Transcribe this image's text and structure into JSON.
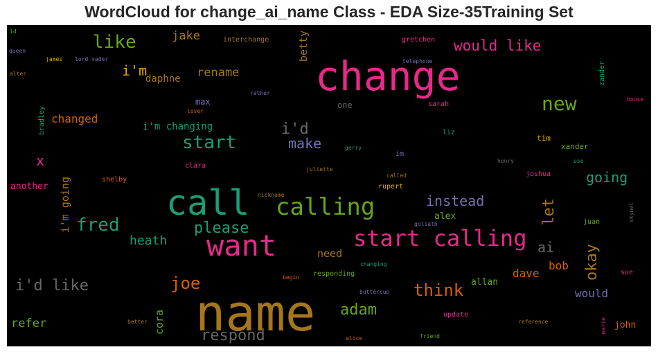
{
  "title": "WordCloud for change_ai_name Class - EDA Size-35Training Set",
  "words": [
    {
      "text": "name",
      "color": "#a6761d"
    },
    {
      "text": "change",
      "color": "#e7298a"
    },
    {
      "text": "call",
      "color": "#1b9e77"
    },
    {
      "text": "want",
      "color": "#e7298a"
    },
    {
      "text": "calling",
      "color": "#66a61e"
    },
    {
      "text": "start calling",
      "color": "#e7298a"
    },
    {
      "text": "new",
      "color": "#66a61e"
    },
    {
      "text": "fred",
      "color": "#1b9e77"
    },
    {
      "text": "start",
      "color": "#1b9e77"
    },
    {
      "text": "i'd like",
      "color": "#666666"
    },
    {
      "text": "like",
      "color": "#66a61e"
    },
    {
      "text": "joe",
      "color": "#d95f02"
    },
    {
      "text": "would like",
      "color": "#e7298a"
    },
    {
      "text": "okay",
      "color": "#a6761d"
    },
    {
      "text": "think",
      "color": "#d95f02"
    },
    {
      "text": "respond",
      "color": "#666666"
    },
    {
      "text": "adam",
      "color": "#66a61e"
    },
    {
      "text": "please",
      "color": "#1b9e77"
    },
    {
      "text": "i'd",
      "color": "#666666"
    },
    {
      "text": "make",
      "color": "#7570b3"
    },
    {
      "text": "instead",
      "color": "#7570b3"
    },
    {
      "text": "let",
      "color": "#a6761d"
    },
    {
      "text": "i'm",
      "color": "#e6ab02"
    },
    {
      "text": "going",
      "color": "#1b9e77"
    },
    {
      "text": "ai",
      "color": "#666666"
    },
    {
      "text": "heath",
      "color": "#1b9e77"
    },
    {
      "text": "rename",
      "color": "#a6761d"
    },
    {
      "text": "x",
      "color": "#e7298a"
    },
    {
      "text": "refer",
      "color": "#66a61e"
    },
    {
      "text": "would",
      "color": "#7570b3"
    },
    {
      "text": "jake",
      "color": "#a6761d"
    },
    {
      "text": "changed",
      "color": "#d95f02"
    },
    {
      "text": "i'm going",
      "color": "#a6761d"
    },
    {
      "text": "bob",
      "color": "#d95f02"
    },
    {
      "text": "dave",
      "color": "#d95f02"
    },
    {
      "text": "cora",
      "color": "#66a61e"
    },
    {
      "text": "need",
      "color": "#a6761d"
    },
    {
      "text": "betty",
      "color": "#a6761d"
    },
    {
      "text": "daphne",
      "color": "#a6761d"
    },
    {
      "text": "i'm changing",
      "color": "#1b9e77"
    },
    {
      "text": "another",
      "color": "#e7298a"
    },
    {
      "text": "allan",
      "color": "#66a61e"
    },
    {
      "text": "alex",
      "color": "#66a61e"
    },
    {
      "text": "john",
      "color": "#d95f02"
    },
    {
      "text": "max",
      "color": "#7570b3"
    },
    {
      "text": "one",
      "color": "#666666"
    },
    {
      "text": "clara",
      "color": "#e7298a"
    },
    {
      "text": "shelby",
      "color": "#d95f02"
    },
    {
      "text": "sarah",
      "color": "#e7298a"
    },
    {
      "text": "xander",
      "color": "#66a61e"
    },
    {
      "text": "joshua",
      "color": "#e7298a"
    },
    {
      "text": "rupert",
      "color": "#e6ab02"
    },
    {
      "text": "tim",
      "color": "#e6ab02"
    },
    {
      "text": "liz",
      "color": "#1b9e77"
    },
    {
      "text": "im",
      "color": "#7570b3"
    },
    {
      "text": "sue",
      "color": "#e7298a"
    },
    {
      "text": "juan",
      "color": "#66a61e"
    },
    {
      "text": "update",
      "color": "#e7298a"
    },
    {
      "text": "responding",
      "color": "#66a61e"
    },
    {
      "text": "gretchen",
      "color": "#e7298a"
    },
    {
      "text": "interchange",
      "color": "#a6761d"
    },
    {
      "text": "bradley",
      "color": "#1b9e77"
    },
    {
      "text": "zander",
      "color": "#1b9e77"
    },
    {
      "text": "house",
      "color": "#e7298a"
    },
    {
      "text": "telephone",
      "color": "#7570b3"
    },
    {
      "text": "lord vader",
      "color": "#7570b3"
    },
    {
      "text": "james",
      "color": "#e6ab02"
    },
    {
      "text": "queen",
      "color": "#7570b3"
    },
    {
      "text": "id",
      "color": "#66a61e"
    },
    {
      "text": "alter",
      "color": "#a6761d"
    },
    {
      "text": "rather",
      "color": "#7570b3"
    },
    {
      "text": "lover",
      "color": "#d95f02"
    },
    {
      "text": "gerry",
      "color": "#1b9e77"
    },
    {
      "text": "juliette",
      "color": "#a6761d"
    },
    {
      "text": "henry",
      "color": "#666666"
    },
    {
      "text": "use",
      "color": "#1b9e77"
    },
    {
      "text": "called",
      "color": "#a6761d"
    },
    {
      "text": "nickname",
      "color": "#a6761d"
    },
    {
      "text": "goliath",
      "color": "#7570b3"
    },
    {
      "text": "skynet",
      "color": "#666666"
    },
    {
      "text": "changing",
      "color": "#1b9e77"
    },
    {
      "text": "begin",
      "color": "#d95f02"
    },
    {
      "text": "buttercup",
      "color": "#7570b3"
    },
    {
      "text": "better",
      "color": "#a6761d"
    },
    {
      "text": "reference",
      "color": "#a6761d"
    },
    {
      "text": "marie",
      "color": "#e7298a"
    },
    {
      "text": "alice",
      "color": "#d95f02"
    },
    {
      "text": "friend",
      "color": "#66a61e"
    }
  ]
}
